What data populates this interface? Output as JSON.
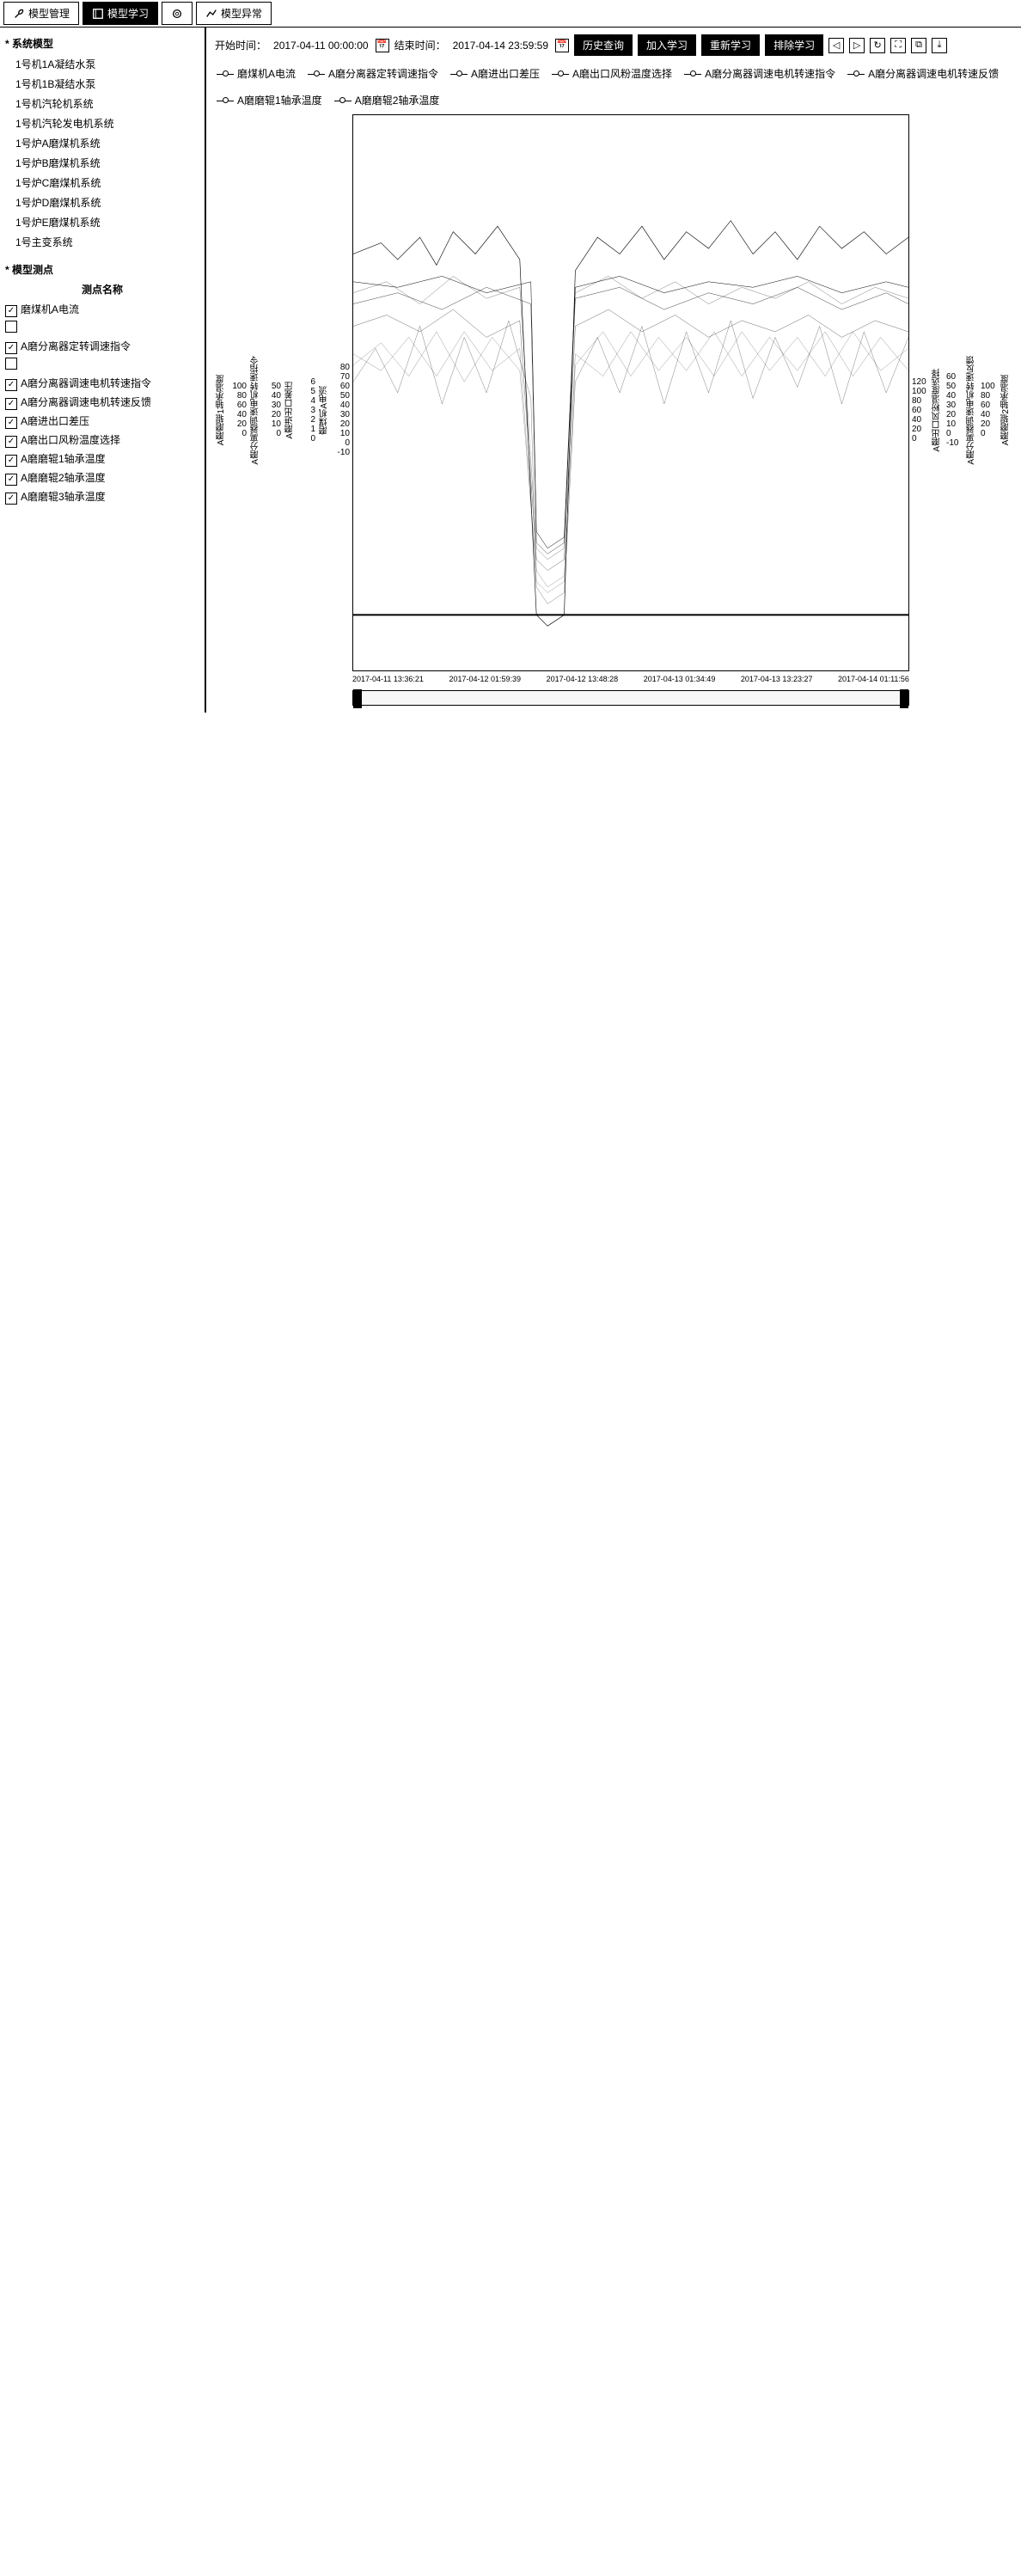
{
  "tabs": [
    {
      "icon": "wrench",
      "label": "模型管理"
    },
    {
      "icon": "book",
      "label": "模型学习"
    },
    {
      "icon": "gear",
      "label": ""
    },
    {
      "icon": "chart",
      "label": "模型异常"
    }
  ],
  "activeTab": 1,
  "sidebar": {
    "treeHeader": "* 系统模型",
    "treeItems": [
      "1号机1A凝结水泵",
      "1号机1B凝结水泵",
      "1号机汽轮机系统",
      "1号机汽轮发电机系统",
      "1号炉A磨煤机系统",
      "1号炉B磨煤机系统",
      "1号炉C磨煤机系统",
      "1号炉D磨煤机系统",
      "1号炉E磨煤机系统",
      "1号主变系统"
    ],
    "pointsHeader": "* 模型测点",
    "pointsColHeader": "测点名称",
    "points": [
      {
        "chk": true,
        "name": "磨煤机A电流"
      },
      {
        "chk": false,
        "name": ""
      },
      {
        "chk": true,
        "name": "A磨分离器定转调速指令"
      },
      {
        "chk": false,
        "name": ""
      },
      {
        "chk": true,
        "name": "A磨分离器调速电机转速指令"
      },
      {
        "chk": true,
        "name": "A磨分离器调速电机转速反馈"
      },
      {
        "chk": true,
        "name": "A磨进出口差压"
      },
      {
        "chk": true,
        "name": "A磨出口风粉温度选择"
      },
      {
        "chk": true,
        "name": "A磨磨辊1轴承温度"
      },
      {
        "chk": true,
        "name": "A磨磨辊2轴承温度"
      },
      {
        "chk": true,
        "name": "A磨磨辊3轴承温度"
      }
    ]
  },
  "toolbar": {
    "startLabel": "开始时间：",
    "startVal": "2017-04-11 00:00:00",
    "endLabel": "结束时间：",
    "endVal": "2017-04-14 23:59:59",
    "btns": [
      "历史查询",
      "加入学习",
      "重新学习",
      "排除学习"
    ],
    "navIcons": [
      "arrow-left",
      "arrow-right",
      "reload",
      "expand",
      "focus",
      "download"
    ]
  },
  "legend": {
    "row1": [
      "磨煤机A电流",
      "A磨分离器定转调速指令",
      "A磨进出口差压",
      "A磨出口风粉温度选择",
      "A磨分离器调速电机转速指令",
      "A磨分离器调速电机转速反馈"
    ],
    "row2": [
      "A磨磨辊1轴承温度",
      "A磨磨辊2轴承温度"
    ]
  },
  "chart": {
    "leftAxes": [
      {
        "label": "A磨磨辊1轴承温度",
        "ticks": [
          "100",
          "80",
          "60",
          "40",
          "20",
          "0"
        ]
      },
      {
        "label": "A磨分离器调速电机转速指令",
        "ticks": [
          "50",
          "40",
          "30",
          "20",
          "10",
          "0"
        ]
      },
      {
        "label": "A磨进出口差压",
        "ticks": [
          "6",
          "5",
          "4",
          "3",
          "2",
          "1",
          "0"
        ]
      },
      {
        "label": "磨煤机A电流",
        "ticks": [
          "80",
          "70",
          "60",
          "50",
          "40",
          "30",
          "20",
          "10",
          "0",
          "-10"
        ]
      }
    ],
    "rightAxes": [
      {
        "label": "A磨出口风粉温度选择",
        "ticks": [
          "120",
          "100",
          "80",
          "60",
          "40",
          "20",
          "0"
        ]
      },
      {
        "label": "A磨分离器调速电机转速反馈",
        "ticks": [
          "60",
          "50",
          "40",
          "30",
          "20",
          "10",
          "0",
          "-10"
        ]
      },
      {
        "label": "A磨磨辊2轴承温度",
        "ticks": [
          "100",
          "80",
          "60",
          "40",
          "20",
          "0"
        ]
      }
    ],
    "xTicks": [
      "2017-04-11 13:36:21",
      "2017-04-12 01:59:39",
      "2017-04-12 13:48:28",
      "2017-04-13 01:34:49",
      "2017-04-13 13:23:27",
      "2017-04-14 01:11:56"
    ],
    "series": [
      {
        "name": "磨煤机A电流",
        "color": "#000000",
        "width": 2.5,
        "pts": [
          [
            0,
            75
          ],
          [
            5,
            77
          ],
          [
            8,
            74
          ],
          [
            12,
            78
          ],
          [
            15,
            73
          ],
          [
            18,
            79
          ],
          [
            22,
            75
          ],
          [
            26,
            80
          ],
          [
            30,
            74
          ],
          [
            33,
            10
          ],
          [
            35,
            8
          ],
          [
            38,
            10
          ],
          [
            40,
            72
          ],
          [
            44,
            78
          ],
          [
            48,
            75
          ],
          [
            52,
            80
          ],
          [
            56,
            74
          ],
          [
            60,
            79
          ],
          [
            64,
            76
          ],
          [
            68,
            81
          ],
          [
            72,
            75
          ],
          [
            76,
            79
          ],
          [
            80,
            74
          ],
          [
            84,
            80
          ],
          [
            88,
            76
          ],
          [
            92,
            79
          ],
          [
            96,
            75
          ],
          [
            100,
            78
          ]
        ]
      },
      {
        "name": "A磨分离器定转调速指令",
        "color": "#000000",
        "width": 1.2,
        "pts": [
          [
            0,
            62
          ],
          [
            6,
            64
          ],
          [
            12,
            61
          ],
          [
            18,
            65
          ],
          [
            24,
            60
          ],
          [
            30,
            63
          ],
          [
            33,
            20
          ],
          [
            35,
            18
          ],
          [
            38,
            20
          ],
          [
            40,
            62
          ],
          [
            46,
            65
          ],
          [
            52,
            61
          ],
          [
            58,
            64
          ],
          [
            64,
            60
          ],
          [
            70,
            63
          ],
          [
            76,
            61
          ],
          [
            82,
            64
          ],
          [
            88,
            60
          ],
          [
            94,
            63
          ],
          [
            100,
            61
          ]
        ]
      },
      {
        "name": "A磨进出口差压",
        "color": "#000000",
        "width": 1,
        "pts": [
          [
            0,
            52
          ],
          [
            4,
            58
          ],
          [
            8,
            50
          ],
          [
            12,
            62
          ],
          [
            16,
            48
          ],
          [
            20,
            60
          ],
          [
            24,
            50
          ],
          [
            28,
            63
          ],
          [
            32,
            49
          ],
          [
            33,
            15
          ],
          [
            35,
            12
          ],
          [
            38,
            14
          ],
          [
            40,
            52
          ],
          [
            44,
            60
          ],
          [
            48,
            50
          ],
          [
            52,
            62
          ],
          [
            56,
            48
          ],
          [
            60,
            61
          ],
          [
            64,
            50
          ],
          [
            68,
            63
          ],
          [
            72,
            49
          ],
          [
            76,
            60
          ],
          [
            80,
            51
          ],
          [
            84,
            62
          ],
          [
            88,
            48
          ],
          [
            92,
            61
          ],
          [
            96,
            50
          ],
          [
            100,
            60
          ]
        ]
      },
      {
        "name": "A磨出口风粉温度选择",
        "color": "#000000",
        "width": 1,
        "pts": [
          [
            0,
            68
          ],
          [
            6,
            70
          ],
          [
            12,
            66
          ],
          [
            18,
            71
          ],
          [
            24,
            67
          ],
          [
            30,
            69
          ],
          [
            33,
            22
          ],
          [
            35,
            20
          ],
          [
            38,
            22
          ],
          [
            40,
            68
          ],
          [
            46,
            71
          ],
          [
            52,
            67
          ],
          [
            58,
            70
          ],
          [
            64,
            66
          ],
          [
            70,
            69
          ],
          [
            76,
            67
          ],
          [
            82,
            70
          ],
          [
            88,
            66
          ],
          [
            94,
            69
          ],
          [
            100,
            67
          ]
        ]
      },
      {
        "name": "A磨分离器调速电机转速指令",
        "color": "#000000",
        "width": 0.8,
        "pts": [
          [
            0,
            55
          ],
          [
            5,
            59
          ],
          [
            10,
            53
          ],
          [
            15,
            61
          ],
          [
            20,
            52
          ],
          [
            25,
            60
          ],
          [
            30,
            54
          ],
          [
            33,
            18
          ],
          [
            35,
            15
          ],
          [
            38,
            17
          ],
          [
            40,
            55
          ],
          [
            45,
            61
          ],
          [
            50,
            53
          ],
          [
            55,
            60
          ],
          [
            60,
            54
          ],
          [
            65,
            61
          ],
          [
            70,
            53
          ],
          [
            75,
            60
          ],
          [
            80,
            54
          ],
          [
            85,
            61
          ],
          [
            90,
            53
          ],
          [
            95,
            60
          ],
          [
            100,
            54
          ]
        ]
      },
      {
        "name": "A磨分离器调速电机转速反馈",
        "color": "#000000",
        "width": 0.8,
        "pts": [
          [
            0,
            57
          ],
          [
            5,
            54
          ],
          [
            10,
            60
          ],
          [
            15,
            53
          ],
          [
            20,
            61
          ],
          [
            25,
            54
          ],
          [
            30,
            58
          ],
          [
            33,
            16
          ],
          [
            35,
            14
          ],
          [
            38,
            16
          ],
          [
            40,
            57
          ],
          [
            45,
            53
          ],
          [
            50,
            61
          ],
          [
            55,
            54
          ],
          [
            60,
            60
          ],
          [
            65,
            53
          ],
          [
            70,
            61
          ],
          [
            75,
            54
          ],
          [
            80,
            60
          ],
          [
            85,
            53
          ],
          [
            90,
            61
          ],
          [
            95,
            54
          ],
          [
            100,
            58
          ]
        ]
      },
      {
        "name": "A磨磨辊1轴承温度",
        "color": "#000000",
        "width": 2,
        "pts": [
          [
            0,
            70
          ],
          [
            8,
            69
          ],
          [
            16,
            71
          ],
          [
            24,
            68
          ],
          [
            32,
            70
          ],
          [
            33,
            25
          ],
          [
            35,
            22
          ],
          [
            38,
            24
          ],
          [
            40,
            69
          ],
          [
            48,
            71
          ],
          [
            56,
            68
          ],
          [
            64,
            70
          ],
          [
            72,
            69
          ],
          [
            80,
            71
          ],
          [
            88,
            68
          ],
          [
            96,
            70
          ],
          [
            100,
            69
          ]
        ]
      },
      {
        "name": "A磨磨辊2轴承温度",
        "color": "#000000",
        "width": 1.5,
        "pts": [
          [
            0,
            66
          ],
          [
            8,
            68
          ],
          [
            16,
            65
          ],
          [
            24,
            69
          ],
          [
            32,
            66
          ],
          [
            33,
            23
          ],
          [
            35,
            21
          ],
          [
            38,
            23
          ],
          [
            40,
            67
          ],
          [
            48,
            69
          ],
          [
            56,
            65
          ],
          [
            64,
            68
          ],
          [
            72,
            66
          ],
          [
            80,
            69
          ],
          [
            88,
            65
          ],
          [
            96,
            68
          ],
          [
            100,
            66
          ]
        ]
      }
    ]
  }
}
